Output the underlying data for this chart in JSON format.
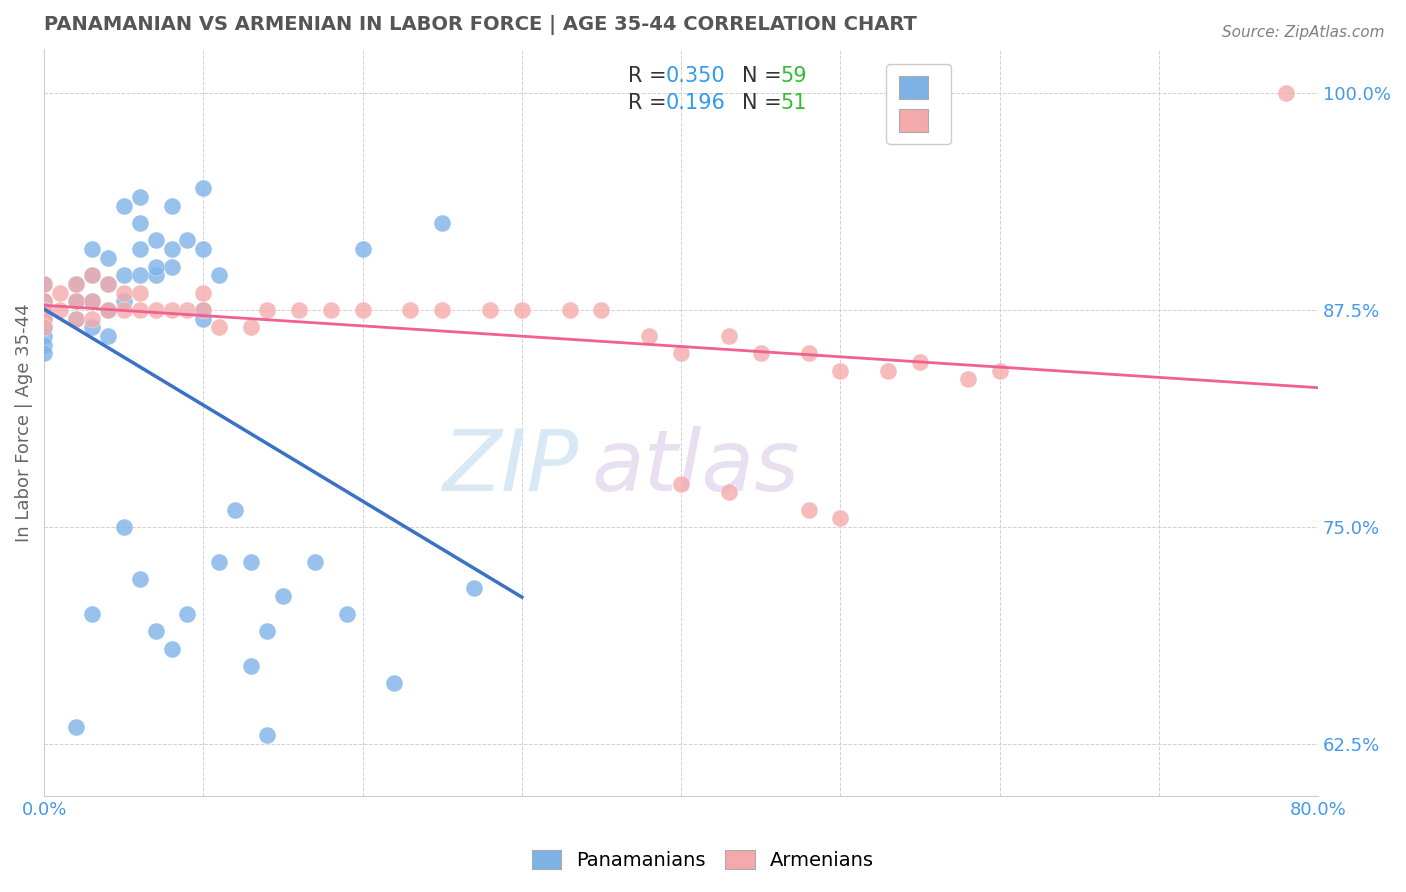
{
  "title": "PANAMANIAN VS ARMENIAN IN LABOR FORCE | AGE 35-44 CORRELATION CHART",
  "source_text": "Source: ZipAtlas.com",
  "ylabel": "In Labor Force | Age 35-44",
  "xlim": [
    0.0,
    0.8
  ],
  "ylim": [
    0.595,
    1.025
  ],
  "xticks": [
    0.0,
    0.1,
    0.2,
    0.3,
    0.4,
    0.5,
    0.6,
    0.7,
    0.8
  ],
  "xticklabels": [
    "0.0%",
    "",
    "",
    "",
    "",
    "",
    "",
    "",
    "80.0%"
  ],
  "ytick_positions": [
    0.625,
    0.75,
    0.875,
    1.0
  ],
  "yticklabels": [
    "62.5%",
    "75.0%",
    "87.5%",
    "100.0%"
  ],
  "blue_color": "#7EB3E8",
  "pink_color": "#F4AAAA",
  "blue_line_color": "#3B72C6",
  "pink_line_color": "#F06090",
  "watermark_color": "#D8E8F5",
  "watermark_color2": "#E8E0F0",
  "legend_R_blue": "0.350",
  "legend_N_blue": "59",
  "legend_R_pink": "0.196",
  "legend_N_pink": "51",
  "blue_x": [
    0.0,
    0.0,
    0.0,
    0.0,
    0.0,
    0.0,
    0.0,
    0.0,
    0.0,
    0.02,
    0.02,
    0.02,
    0.03,
    0.03,
    0.03,
    0.03,
    0.04,
    0.04,
    0.04,
    0.05,
    0.05,
    0.06,
    0.06,
    0.06,
    0.07,
    0.07,
    0.08,
    0.08,
    0.09,
    0.1,
    0.1,
    0.1,
    0.11,
    0.12,
    0.13,
    0.14,
    0.15,
    0.17,
    0.19,
    0.2,
    0.22,
    0.25,
    0.27,
    0.02,
    0.03,
    0.04,
    0.05,
    0.06,
    0.07,
    0.08,
    0.1,
    0.11,
    0.13,
    0.14,
    0.05,
    0.06,
    0.07,
    0.08,
    0.09
  ],
  "blue_y": [
    0.89,
    0.88,
    0.875,
    0.87,
    0.865,
    0.86,
    0.855,
    0.85,
    0.875,
    0.89,
    0.88,
    0.87,
    0.91,
    0.895,
    0.88,
    0.865,
    0.905,
    0.89,
    0.875,
    0.895,
    0.88,
    0.925,
    0.91,
    0.895,
    0.915,
    0.895,
    0.935,
    0.9,
    0.915,
    0.945,
    0.91,
    0.875,
    0.895,
    0.76,
    0.73,
    0.69,
    0.71,
    0.73,
    0.7,
    0.91,
    0.66,
    0.925,
    0.715,
    0.635,
    0.7,
    0.86,
    0.935,
    0.94,
    0.9,
    0.91,
    0.87,
    0.73,
    0.67,
    0.63,
    0.75,
    0.72,
    0.69,
    0.68,
    0.7
  ],
  "pink_x": [
    0.0,
    0.0,
    0.0,
    0.0,
    0.0,
    0.01,
    0.01,
    0.02,
    0.02,
    0.02,
    0.03,
    0.03,
    0.03,
    0.04,
    0.04,
    0.05,
    0.05,
    0.06,
    0.06,
    0.07,
    0.08,
    0.09,
    0.1,
    0.1,
    0.11,
    0.13,
    0.14,
    0.16,
    0.18,
    0.2,
    0.23,
    0.25,
    0.28,
    0.3,
    0.33,
    0.35,
    0.38,
    0.4,
    0.43,
    0.45,
    0.48,
    0.5,
    0.53,
    0.55,
    0.58,
    0.6,
    0.4,
    0.43,
    0.48,
    0.5,
    0.78
  ],
  "pink_y": [
    0.89,
    0.88,
    0.875,
    0.87,
    0.865,
    0.885,
    0.875,
    0.89,
    0.88,
    0.87,
    0.895,
    0.88,
    0.87,
    0.89,
    0.875,
    0.885,
    0.875,
    0.885,
    0.875,
    0.875,
    0.875,
    0.875,
    0.885,
    0.875,
    0.865,
    0.865,
    0.875,
    0.875,
    0.875,
    0.875,
    0.875,
    0.875,
    0.875,
    0.875,
    0.875,
    0.875,
    0.86,
    0.85,
    0.86,
    0.85,
    0.85,
    0.84,
    0.84,
    0.845,
    0.835,
    0.84,
    0.775,
    0.77,
    0.76,
    0.755,
    1.0
  ],
  "background_color": "#ffffff",
  "grid_color": "#cccccc",
  "title_color": "#555555",
  "tick_label_color": "#4499EE"
}
